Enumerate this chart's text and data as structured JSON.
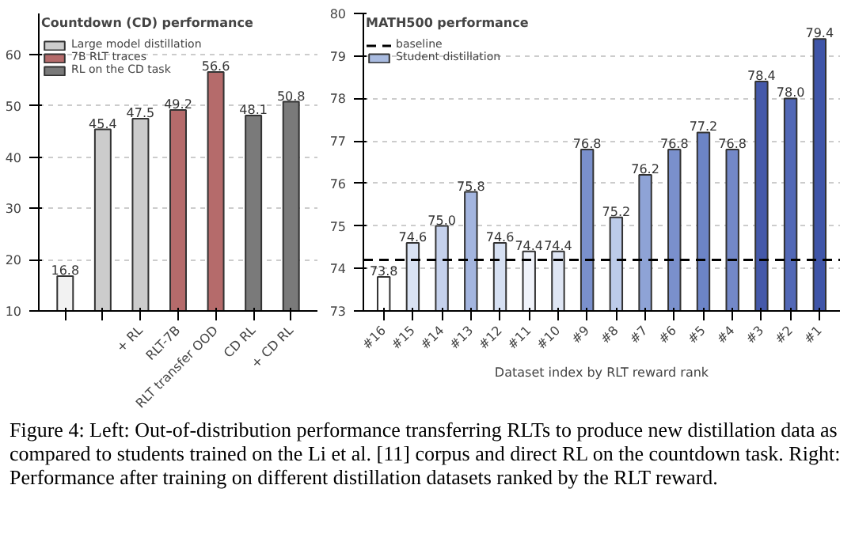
{
  "chart_data": [
    {
      "type": "bar",
      "legend_title": "Countdown (CD) performance",
      "categories": [
        null,
        null,
        "+ RL",
        "RLT-7B",
        "RLT transfer OOD",
        "CD RL",
        "+ CD RL"
      ],
      "series": [
        {
          "name": "Large model distillation",
          "color": "#cccccc",
          "colors": [
            "#f2f2f2",
            "#cccccc",
            "#cccccc",
            null,
            null,
            null,
            null
          ],
          "values": [
            16.8,
            45.4,
            47.5,
            null,
            null,
            null,
            null
          ],
          "value_labels": [
            "16.8",
            "45.4",
            "47.5",
            null,
            null,
            null,
            null
          ]
        },
        {
          "name": "7B RLT traces",
          "color": "#b56b6b",
          "values": [
            null,
            null,
            null,
            49.2,
            56.6,
            null,
            null
          ],
          "value_labels": [
            null,
            null,
            null,
            "49.2",
            "56.6",
            null,
            null
          ]
        },
        {
          "name": "RL on the CD task",
          "color": "#7a7a7a",
          "values": [
            null,
            null,
            null,
            null,
            null,
            48.1,
            50.8
          ],
          "value_labels": [
            null,
            null,
            null,
            null,
            null,
            "48.1",
            "50.8"
          ]
        }
      ],
      "ylim": [
        10,
        68
      ],
      "yticks": [
        10,
        20,
        30,
        40,
        50,
        60
      ],
      "grid": "y",
      "legend": "top left",
      "annotations": [
        "Figure 4:  Left: Out-of-distribution performance transferring RLTs to produce new distillation data as compared to students trained on the Li et al. [11] corpus and direct RL on the countdown task. Right: Performance after training on different distillation datasets ranked by the RLT reward."
      ]
    },
    {
      "type": "bar",
      "legend_title": "MATH500 performance",
      "xlabel": "Dataset index by RLT reward rank",
      "categories": [
        "#16",
        "#15",
        "#14",
        "#13",
        "#12",
        "#11",
        "#10",
        "#9",
        "#8",
        "#7",
        "#6",
        "#5",
        "#4",
        "#3",
        "#2",
        "#1"
      ],
      "series": [
        {
          "name": "Student distillation",
          "color": "#a9bbe0",
          "colors": [
            "#ffffff",
            "#d9e2f3",
            "#c5d1ec",
            "#a3b5df",
            "#d6e0f2",
            "#f0f3fa",
            "#dfe6f4",
            "#7a90cc",
            "#bccbe9",
            "#8ea3d6",
            "#7a90cc",
            "#6c84c6",
            "#7388c8",
            "#4559aa",
            "#5268b6",
            "#3f55a8"
          ],
          "values": [
            73.8,
            74.6,
            75.0,
            75.8,
            74.6,
            74.4,
            74.4,
            76.8,
            75.2,
            76.2,
            76.8,
            77.2,
            76.8,
            78.4,
            78.0,
            79.4
          ],
          "value_labels": [
            "73.8",
            "74.6",
            "75.0",
            "75.8",
            "74.6",
            "74.4",
            "74.4",
            "76.8",
            "75.2",
            "76.2",
            "76.8",
            "77.2",
            "76.8",
            "78.4",
            "78.0",
            "79.4"
          ]
        }
      ],
      "ref_lines": [
        {
          "axis": "y",
          "value": 74.2,
          "label": "baseline",
          "color": "#000000",
          "line_style": "dashed"
        }
      ],
      "ylim": [
        73,
        80
      ],
      "yticks": [
        73,
        74,
        75,
        76,
        77,
        78,
        79,
        80
      ],
      "grid": "y",
      "legend": "top left"
    }
  ]
}
